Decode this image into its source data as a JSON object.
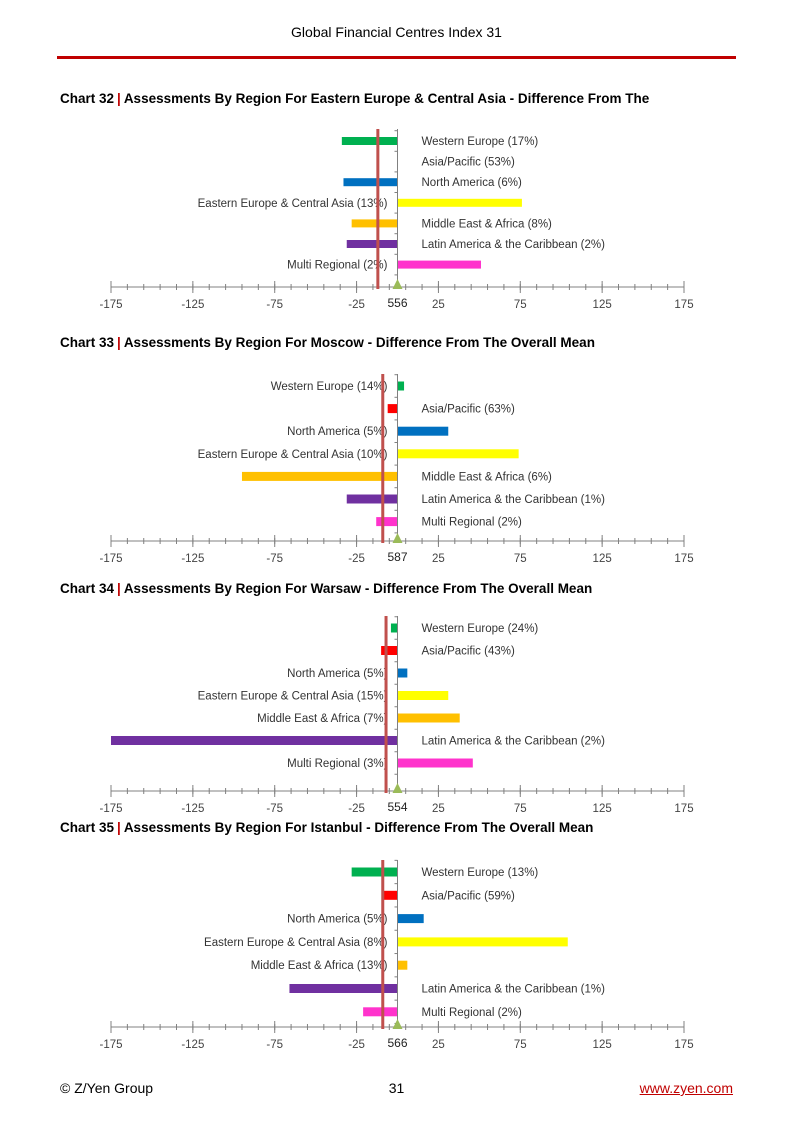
{
  "header": {
    "title": "Global Financial Centres Index 31"
  },
  "footer": {
    "copyright": "© Z/Yen Group",
    "page_number": "31",
    "website": "www.zyen.com"
  },
  "colors": {
    "accent_red": "#c00000",
    "mean_line": "#c0504d",
    "marker": "#9bbb59",
    "axis": "#808080"
  },
  "chart_data": [
    {
      "type": "bar",
      "number": "Chart 32",
      "title": "Assessments By Region For Eastern Europe & Central Asia - Difference From The",
      "ticks": [
        -175,
        -125,
        -75,
        -25,
        25,
        75,
        125,
        175
      ],
      "xlim": [
        -175,
        175
      ],
      "mean_label": "556",
      "mean_line_value": -12,
      "categories": [
        "Western Europe (17%)",
        "Asia/Pacific (53%)",
        "North America (6%)",
        "Eastern Europe & Central Asia (13%)",
        "Middle East & Africa (8%)",
        "Latin America & the Caribbean (2%)",
        "Multi Regional (2%)"
      ],
      "values": [
        -34,
        0,
        -33,
        76,
        -28,
        -31,
        51
      ],
      "colors": [
        "#00b050",
        "#ff0000",
        "#0070c0",
        "#ffff00",
        "#ffc000",
        "#7030a0",
        "#ff33cc"
      ]
    },
    {
      "type": "bar",
      "number": "Chart 33",
      "title": "Assessments By Region For Moscow - Difference From The Overall Mean",
      "ticks": [
        -175,
        -125,
        -75,
        -25,
        25,
        75,
        125,
        175
      ],
      "xlim": [
        -175,
        175
      ],
      "mean_label": "587",
      "mean_line_value": -9,
      "categories": [
        "Western Europe (14%)",
        "Asia/Pacific (63%)",
        "North America (5%)",
        "Eastern Europe & Central Asia (10%)",
        "Middle East & Africa (6%)",
        "Latin America & the Caribbean (1%)",
        "Multi Regional (2%)"
      ],
      "values": [
        4,
        -6,
        31,
        74,
        -95,
        -31,
        -13
      ],
      "colors": [
        "#00b050",
        "#ff0000",
        "#0070c0",
        "#ffff00",
        "#ffc000",
        "#7030a0",
        "#ff33cc"
      ]
    },
    {
      "type": "bar",
      "number": "Chart 34",
      "title": "Assessments By Region For Warsaw - Difference From The Overall Mean",
      "ticks": [
        -175,
        -125,
        -75,
        -25,
        25,
        75,
        125,
        175
      ],
      "xlim": [
        -175,
        175
      ],
      "mean_label": "554",
      "mean_line_value": -7,
      "categories": [
        "Western Europe (24%)",
        "Asia/Pacific (43%)",
        "North America (5%)",
        "Eastern Europe & Central Asia (15%)",
        "Middle East & Africa (7%)",
        "Latin America & the Caribbean (2%)",
        "Multi Regional (3%)"
      ],
      "values": [
        -4,
        -10,
        6,
        31,
        38,
        -175,
        46
      ],
      "colors": [
        "#00b050",
        "#ff0000",
        "#0070c0",
        "#ffff00",
        "#ffc000",
        "#7030a0",
        "#ff33cc"
      ]
    },
    {
      "type": "bar",
      "number": "Chart 35",
      "title": "Assessments By Region For Istanbul - Difference From The Overall Mean",
      "ticks": [
        -175,
        -125,
        -75,
        -25,
        25,
        75,
        125,
        175
      ],
      "xlim": [
        -175,
        175
      ],
      "mean_label": "566",
      "mean_line_value": -9,
      "categories": [
        "Western Europe (13%)",
        "Asia/Pacific (59%)",
        "North America (5%)",
        "Eastern Europe & Central Asia (8%)",
        "Middle East & Africa (13%)",
        "Latin America & the Caribbean (1%)",
        "Multi Regional (2%)"
      ],
      "values": [
        -28,
        -9,
        16,
        104,
        6,
        -66,
        -21
      ],
      "colors": [
        "#00b050",
        "#ff0000",
        "#0070c0",
        "#ffff00",
        "#ffc000",
        "#7030a0",
        "#ff33cc"
      ]
    }
  ]
}
